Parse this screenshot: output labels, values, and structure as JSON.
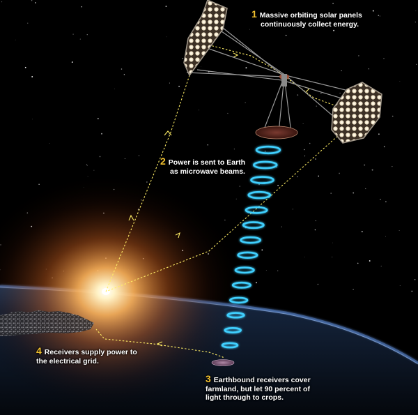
{
  "steps": [
    {
      "number": "1",
      "line1": "Massive orbiting solar panels",
      "line2": "continuously collect energy.",
      "line3": ""
    },
    {
      "number": "2",
      "line1": "Power is sent to Earth",
      "line2": "as microwave beams.",
      "line3": ""
    },
    {
      "number": "3",
      "line1": "Earthbound receivers cover",
      "line2": "farmland, but let 90 percent of",
      "line3": "light through to crops."
    },
    {
      "number": "4",
      "line1": "Receivers supply power to",
      "line2": "the electrical grid.",
      "line3": ""
    }
  ],
  "colors": {
    "number": "#f2c12e",
    "text": "#ffffff",
    "beam": "#3fd0ff",
    "path": "#ffee66",
    "space": "#000000",
    "earth_glow": "#6fa6ff"
  },
  "icons": [
    "solar-panel-icon",
    "satellite-transmitter-icon",
    "microwave-beam-icon",
    "earth-receiver-icon",
    "city-icon",
    "sun-icon"
  ]
}
